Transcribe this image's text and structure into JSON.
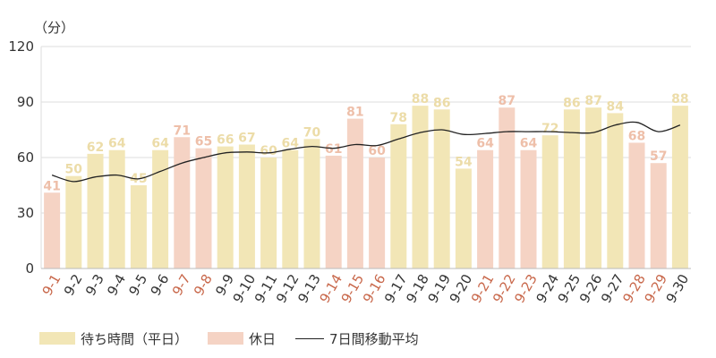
{
  "chart_data": {
    "type": "bar",
    "ylabel": "（分）",
    "ylim": [
      0,
      120
    ],
    "yticks": [
      0,
      30,
      60,
      90,
      120
    ],
    "categories": [
      "9-1",
      "9-2",
      "9-3",
      "9-4",
      "9-5",
      "9-6",
      "9-7",
      "9-8",
      "9-9",
      "9-10",
      "9-11",
      "9-12",
      "9-13",
      "9-14",
      "9-15",
      "9-16",
      "9-17",
      "9-18",
      "9-19",
      "9-20",
      "9-21",
      "9-22",
      "9-23",
      "9-24",
      "9-25",
      "9-26",
      "9-27",
      "9-28",
      "9-29",
      "9-30"
    ],
    "series": [
      {
        "name": "待ち時間（平日）",
        "type": "bar",
        "values": [
          41,
          50,
          62,
          64,
          45,
          64,
          71,
          65,
          66,
          67,
          60,
          64,
          70,
          61,
          81,
          60,
          78,
          88,
          86,
          54,
          64,
          87,
          64,
          72,
          86,
          87,
          84,
          68,
          57,
          88
        ],
        "holiday": [
          true,
          false,
          false,
          false,
          false,
          false,
          true,
          true,
          false,
          false,
          false,
          false,
          false,
          true,
          true,
          true,
          false,
          false,
          false,
          false,
          true,
          true,
          true,
          false,
          false,
          false,
          false,
          true,
          true,
          false
        ]
      },
      {
        "name": "7日間移動平均",
        "type": "line",
        "values": [
          50.5,
          47,
          49.5,
          50.5,
          48.5,
          52.5,
          57,
          60,
          62.5,
          63,
          62.5,
          64.5,
          66,
          65,
          67,
          66.5,
          70,
          73.5,
          75,
          72.5,
          73,
          74,
          74,
          74,
          73.5,
          73.5,
          77.5,
          79,
          74,
          77.5
        ]
      }
    ],
    "legend": [
      {
        "label": "待ち時間（平日）",
        "color": "#f2e6b6"
      },
      {
        "label": "休日",
        "color": "#f5d3c4"
      },
      {
        "label": "7日間移動平均",
        "color": "#222222"
      }
    ],
    "colors": {
      "weekday_bar": "#f2e6b6",
      "holiday_bar": "#f5d3c4",
      "weekday_label": "#ecdca8",
      "holiday_label": "#eebfa9",
      "holiday_tick": "#c8674a",
      "normal_tick": "#333333",
      "line": "#222222",
      "grid": "#dddddd"
    }
  }
}
